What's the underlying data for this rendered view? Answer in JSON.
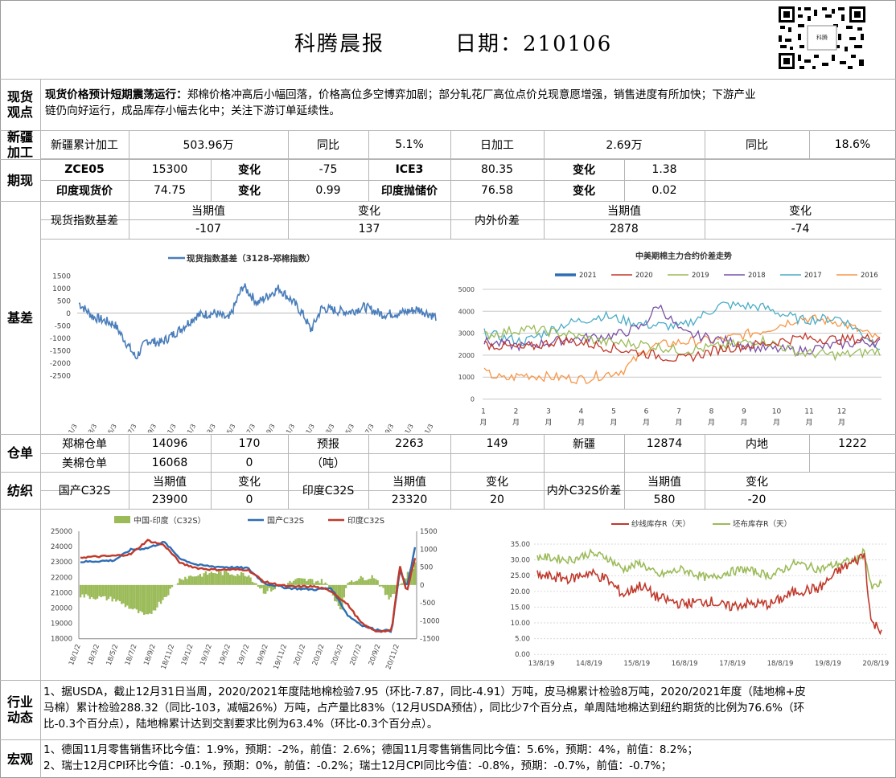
{
  "header": {
    "title": "科腾晨报",
    "date_label": "日期：210106"
  },
  "spot_view": {
    "section": "现货\n观点",
    "headline": "现货价格预计短期震荡运行：",
    "body_line1": "郑棉价格冲高后小幅回落，价格高位多空博弈加剧；部分轧花厂高位点价兑现意愿增强，销售进度有所加快；下游产业",
    "body_line2": "链仍向好运行，成品库存小幅去化中；关注下游订单延续性。"
  },
  "xinjiang": {
    "section": "新疆\n加工",
    "cum_label": "新疆累计加工",
    "cum_value": "503.96万",
    "yoy_label": "同比",
    "yoy_value": "5.1%",
    "daily_label": "日加工",
    "daily_value": "2.69万",
    "daily_yoy_label": "同比",
    "daily_yoy_value": "18.6%"
  },
  "futures": {
    "section": "期现",
    "row1": {
      "name1": "ZCE05",
      "price1": "15300",
      "chg_label1": "变化",
      "chg1": "-75",
      "name2": "ICE3",
      "price2": "80.35",
      "chg_label2": "变化",
      "chg2": "1.38"
    },
    "row2": {
      "name1": "印度现货价",
      "price1": "74.75",
      "chg_label1": "变化",
      "chg1": "0.99",
      "name2": "印度抛储价",
      "price2": "76.58",
      "chg_label2": "变化",
      "chg2": "0.02"
    }
  },
  "basis": {
    "section": "基差",
    "spot_label": "现货指数基差",
    "cur_label": "当期值",
    "chg_label": "变化",
    "spot_cur": "-107",
    "spot_chg": "137",
    "diff_label": "内外价差",
    "cur_label2": "当期值",
    "chg_label2": "变化",
    "diff_cur": "2878",
    "diff_chg": "-74"
  },
  "chart_basis": {
    "title": "现货指数基差（3128-郑棉指数）",
    "color": "#4a7ebb",
    "yticks": [
      "1500",
      "1000",
      "500",
      "0",
      "-500",
      "-1000",
      "-1500",
      "-2000",
      "-2500"
    ],
    "xticks": [
      "2018/1/3",
      "2018/3/3",
      "2018/5/3",
      "2018/7/3",
      "2018/9/3",
      "2018/11/3",
      "2019/1/3",
      "2019/3/3",
      "2019/5/3",
      "2019/7/3",
      "2019/9/3",
      "2019/11/3",
      "2020/1/3",
      "2020/3/3",
      "2020/5/3",
      "2020/7/3",
      "2020/9/3",
      "2020/11/3",
      "2021/1/3"
    ]
  },
  "chart_spread": {
    "title": "中美期棉主力合约价差走势",
    "legend": [
      {
        "name": "2021",
        "color": "#2e6db4"
      },
      {
        "name": "2020",
        "color": "#c0392b"
      },
      {
        "name": "2019",
        "color": "#9bbb59"
      },
      {
        "name": "2018",
        "color": "#7b52a6"
      },
      {
        "name": "2017",
        "color": "#4bacc6"
      },
      {
        "name": "2016",
        "color": "#f79646"
      }
    ],
    "yticks": [
      "5000",
      "4000",
      "3000",
      "2000",
      "1000",
      "0"
    ],
    "xticks_top": [
      "1",
      "2",
      "3",
      "4",
      "5",
      "6",
      "7",
      "8",
      "9",
      "10",
      "11",
      "12"
    ],
    "xtick_bottom": "月"
  },
  "warehouse": {
    "section": "仓单",
    "zce_label": "郑棉仓单",
    "zce_val": "14096",
    "zce_chg": "170",
    "fcst_label": "预报",
    "fcst_unit": "（吨）",
    "fcst_val": "2263",
    "fcst_chg": "149",
    "xj_label": "新疆",
    "xj_val": "12874",
    "inland_label": "内地",
    "inland_val": "1222",
    "us_label": "美棉仓单",
    "us_val": "16068",
    "us_chg": "0"
  },
  "textile": {
    "section": "纺织",
    "dom_label": "国产C32S",
    "cur_label": "当期值",
    "chg_label": "变化",
    "dom_cur": "23900",
    "dom_chg": "0",
    "ind_label": "印度C32S",
    "cur_label2": "当期值",
    "chg_label2": "变化",
    "ind_cur": "23320",
    "ind_chg": "20",
    "diff_label": "内外C32S价差",
    "cur_label3": "当期值",
    "chg_label3": "变化",
    "diff_cur": "580",
    "diff_chg": "-20"
  },
  "chart_yarn": {
    "legend": [
      {
        "name": "中国-印度（C32S）",
        "color": "#9bbb59"
      },
      {
        "name": "国产C32S",
        "color": "#2e6db4"
      },
      {
        "name": "印度C32S",
        "color": "#c0392b"
      }
    ],
    "yticks_left": [
      "25000",
      "24000",
      "23000",
      "22000",
      "21000",
      "20000",
      "19000",
      "18000"
    ],
    "yticks_right": [
      "1500",
      "1000",
      "500",
      "0",
      "-500",
      "-1000",
      "-1500"
    ],
    "xticks": [
      "18/1/2",
      "18/3/2",
      "18/5/2",
      "18/7/2",
      "18/9/2",
      "18/11/2",
      "19/1/2",
      "19/3/2",
      "19/5/2",
      "19/7/2",
      "19/9/2",
      "19/11/2",
      "20/1/2",
      "20/3/2",
      "20/5/2",
      "20/7/2",
      "20/9/2",
      "20/11/2"
    ]
  },
  "chart_inventory": {
    "legend": [
      {
        "name": "纱线库存R（天）",
        "color": "#c0392b"
      },
      {
        "name": "坯布库存R（天）",
        "color": "#9bbb59"
      }
    ],
    "yticks": [
      "35.00",
      "30.00",
      "25.00",
      "20.00",
      "15.00",
      "10.00",
      "5.00",
      "0.00"
    ],
    "xticks": [
      "13/8/19",
      "14/8/19",
      "15/8/19",
      "16/8/19",
      "17/8/19",
      "18/8/19",
      "19/8/19",
      "20/8/19"
    ]
  },
  "industry": {
    "section": "行业\n动态",
    "line1": "1、据USDA，截止12月31日当周，2020/2021年度陆地棉检验7.95（环比-7.87，同比-4.91）万吨，皮马棉累计检验8万吨，2020/2021年度（陆地棉+皮",
    "line2": "马棉）累计检验288.32（同比-103，减幅26%）万吨，占产量比83%（12月USDA预估），同比少7个百分点，单周陆地棉达到纽约期货的比例为76.6%（环",
    "line3": "比-0.3个百分点），陆地棉累计达到交割要求比例为63.4%（环比-0.3个百分点）。"
  },
  "macro": {
    "section": "宏观",
    "line1": "1、德国11月零售销售环比今值：1.9%，预期：-2%，前值：2.6%；德国11月零售销售同比今值：5.6%，预期：4%，前值：8.2%；",
    "line2": "2、瑞士12月CPI环比今值：-0.1%，预期：0%，前值：-0.2%；瑞士12月CPI同比今值：-0.8%，预期：-0.7%，前值：-0.7%；"
  }
}
